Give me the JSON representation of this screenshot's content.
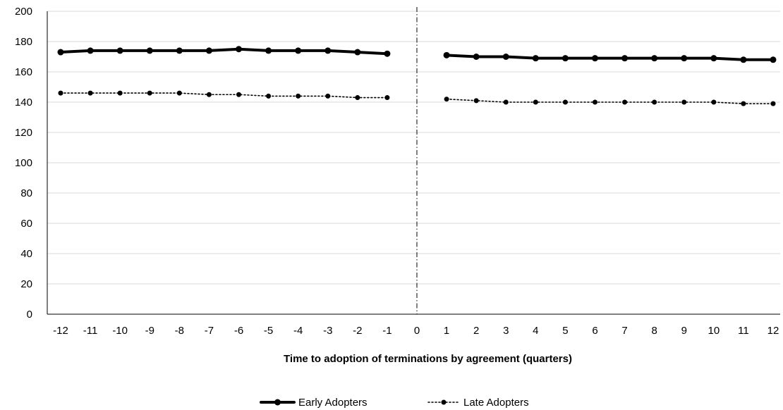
{
  "chart_data": {
    "type": "line",
    "x": [
      -12,
      -11,
      -10,
      -9,
      -8,
      -7,
      -6,
      -5,
      -4,
      -3,
      -2,
      -1,
      0,
      1,
      2,
      3,
      4,
      5,
      6,
      7,
      8,
      9,
      10,
      11,
      12
    ],
    "series": [
      {
        "name": "Early Adopters",
        "color": "#000000",
        "style": "solid",
        "values": [
          173,
          174,
          174,
          174,
          174,
          174,
          175,
          174,
          174,
          174,
          173,
          172,
          null,
          171,
          170,
          170,
          169,
          169,
          169,
          169,
          169,
          169,
          169,
          168,
          168
        ]
      },
      {
        "name": "Late Adopters",
        "color": "#000000",
        "style": "dotted",
        "values": [
          146,
          146,
          146,
          146,
          146,
          145,
          145,
          144,
          144,
          144,
          143,
          143,
          null,
          142,
          141,
          140,
          140,
          140,
          140,
          140,
          140,
          140,
          140,
          139,
          139
        ]
      }
    ],
    "title": "",
    "xlabel": "Time to adoption of terminations by agreement (quarters)",
    "ylabel": "",
    "xticks": [
      "-12",
      "-11",
      "-10",
      "-9",
      "-8",
      "-7",
      "-6",
      "-5",
      "-4",
      "-3",
      "-2",
      "-1",
      "0",
      "1",
      "2",
      "3",
      "4",
      "5",
      "6",
      "7",
      "8",
      "9",
      "10",
      "11",
      "12"
    ],
    "yticks": [
      "0",
      "20",
      "40",
      "60",
      "80",
      "100",
      "120",
      "140",
      "160",
      "180",
      "200"
    ],
    "ylim": [
      0,
      200
    ],
    "vertical_reference_line_x": 0,
    "grid": "horizontal",
    "legend_position": "bottom"
  }
}
